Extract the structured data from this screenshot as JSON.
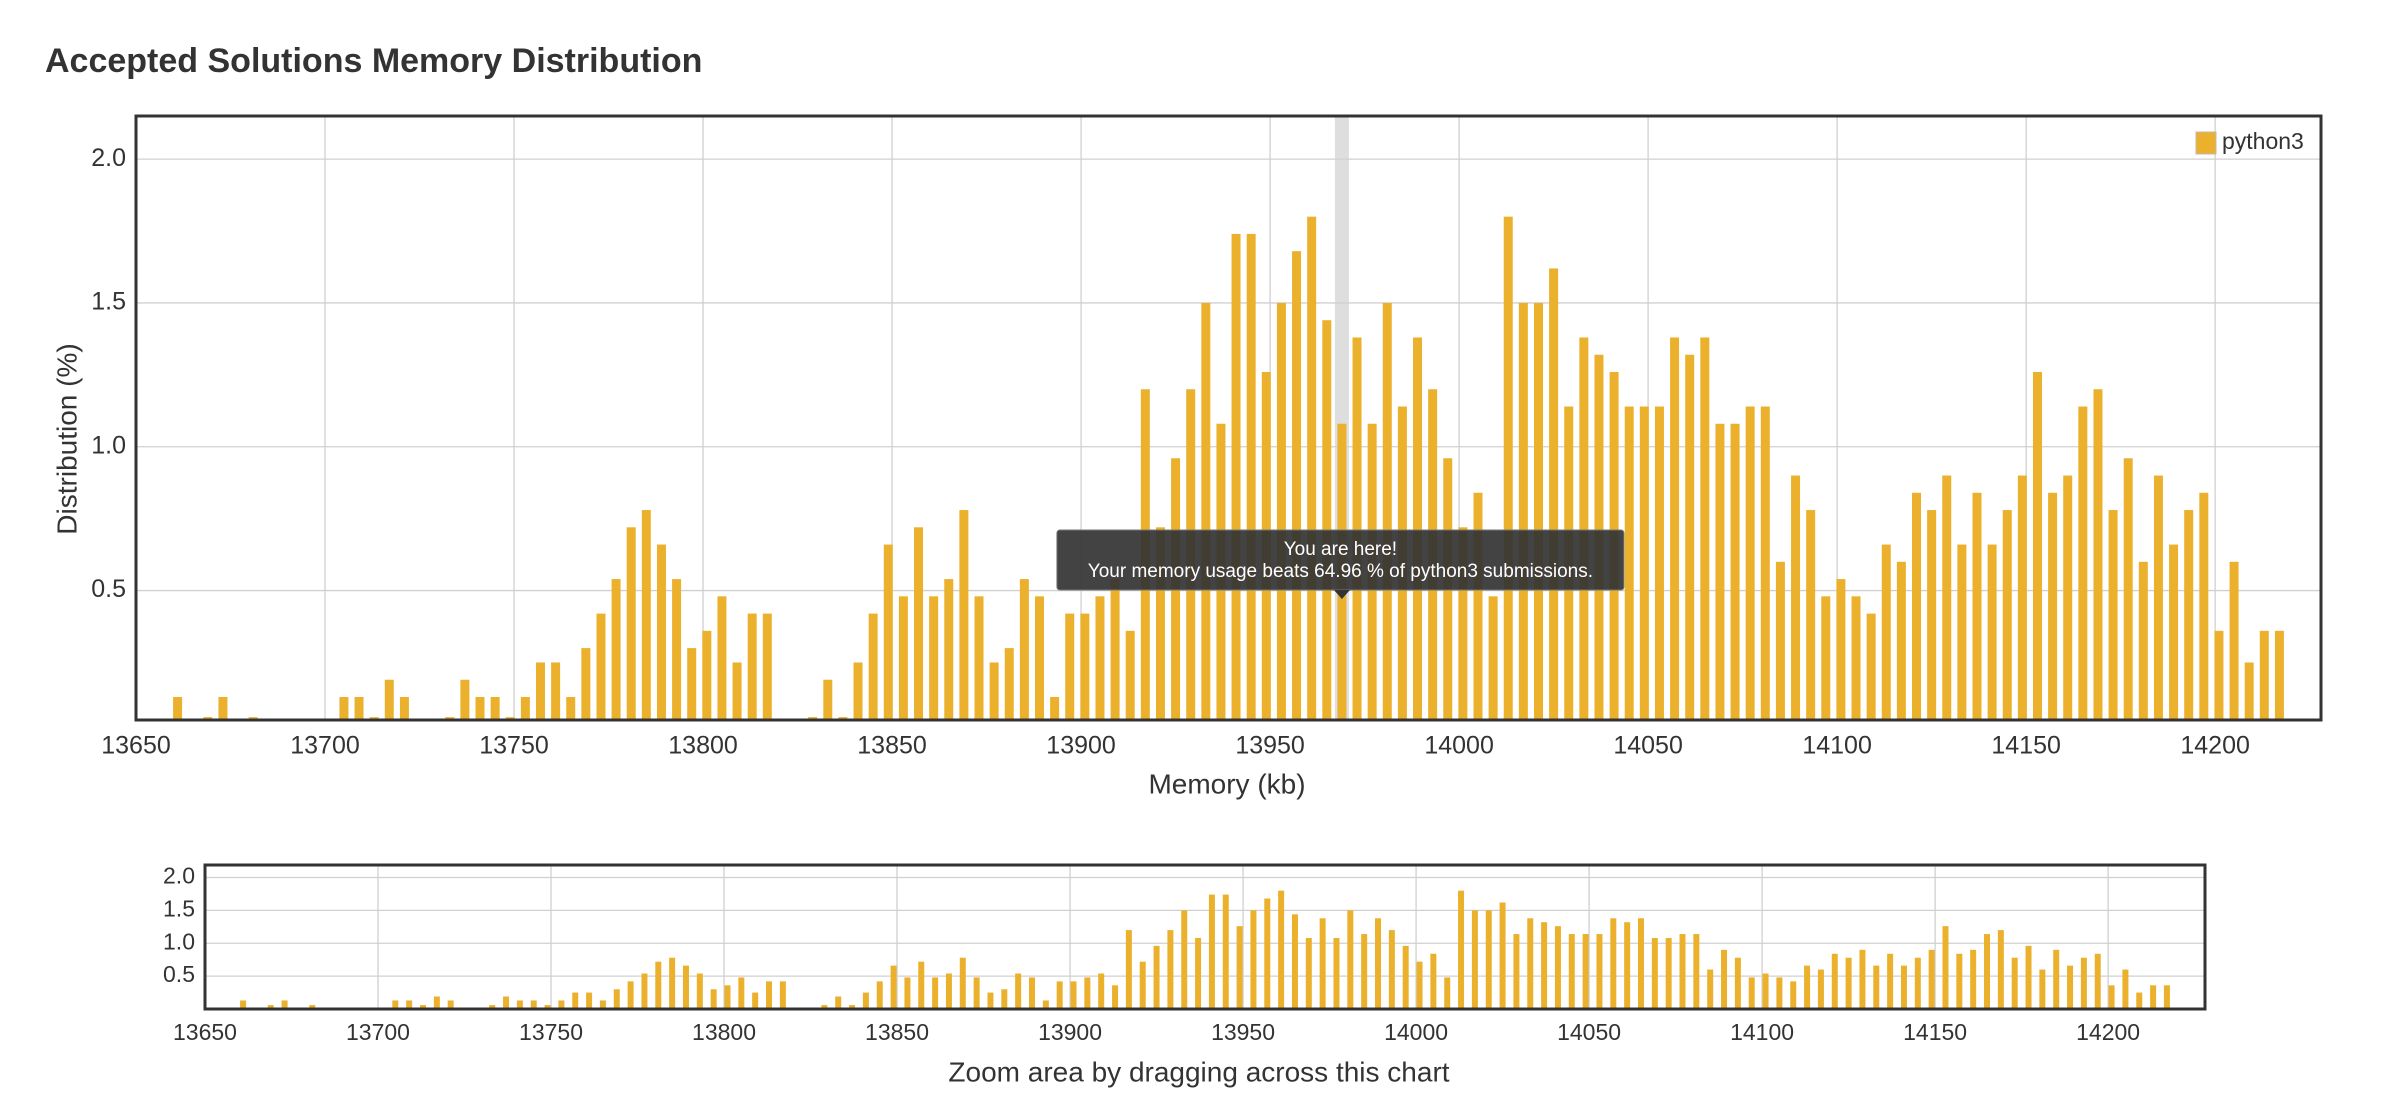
{
  "chart_data": {
    "type": "bar",
    "title": "Accepted Solutions Memory Distribution",
    "x_label": "Memory (kb)",
    "y_label": "Distribution (%)",
    "series": [
      {
        "name": "python3",
        "color": "#ebb12d",
        "x": [
          13661,
          13669,
          13673,
          13681,
          13705,
          13709,
          13713,
          13717,
          13721,
          13733,
          13737,
          13741,
          13745,
          13749,
          13753,
          13757,
          13761,
          13765,
          13769,
          13773,
          13777,
          13781,
          13785,
          13789,
          13793,
          13797,
          13801,
          13805,
          13809,
          13813,
          13817,
          13829,
          13833,
          13837,
          13841,
          13845,
          13849,
          13853,
          13857,
          13861,
          13865,
          13869,
          13873,
          13877,
          13881,
          13885,
          13889,
          13893,
          13897,
          13901,
          13905,
          13909,
          13913,
          13917,
          13921,
          13925,
          13929,
          13933,
          13937,
          13941,
          13945,
          13949,
          13953,
          13957,
          13961,
          13965,
          13969,
          13973,
          13977,
          13981,
          13985,
          13989,
          13993,
          13997,
          14001,
          14005,
          14009,
          14013,
          14017,
          14021,
          14025,
          14029,
          14033,
          14037,
          14041,
          14045,
          14049,
          14053,
          14057,
          14061,
          14065,
          14069,
          14073,
          14077,
          14081,
          14085,
          14089,
          14093,
          14097,
          14101,
          14105,
          14109,
          14113,
          14117,
          14121,
          14125,
          14129,
          14133,
          14137,
          14141,
          14145,
          14149,
          14153,
          14157,
          14161,
          14165,
          14169,
          14173,
          14177,
          14181,
          14185,
          14189,
          14193,
          14197,
          14201,
          14205,
          14209,
          14213,
          14217
        ],
        "values": [
          0.13,
          0.06,
          0.13,
          0.06,
          0.13,
          0.13,
          0.06,
          0.19,
          0.13,
          0.06,
          0.19,
          0.13,
          0.13,
          0.06,
          0.13,
          0.25,
          0.25,
          0.13,
          0.3,
          0.42,
          0.54,
          0.72,
          0.78,
          0.66,
          0.54,
          0.3,
          0.36,
          0.48,
          0.25,
          0.42,
          0.42,
          0.06,
          0.19,
          0.06,
          0.25,
          0.42,
          0.66,
          0.48,
          0.72,
          0.48,
          0.54,
          0.78,
          0.48,
          0.25,
          0.3,
          0.54,
          0.48,
          0.13,
          0.42,
          0.42,
          0.48,
          0.54,
          0.36,
          1.2,
          0.72,
          0.96,
          1.2,
          1.5,
          1.08,
          1.74,
          1.74,
          1.26,
          1.5,
          1.68,
          1.8,
          1.44,
          1.08,
          1.38,
          1.08,
          1.5,
          1.14,
          1.38,
          1.2,
          0.96,
          0.72,
          0.84,
          0.48,
          1.8,
          1.5,
          1.5,
          1.62,
          1.14,
          1.38,
          1.32,
          1.26,
          1.14,
          1.14,
          1.14,
          1.38,
          1.32,
          1.38,
          1.08,
          1.08,
          1.14,
          1.14,
          0.6,
          0.9,
          0.78,
          0.48,
          0.54,
          0.48,
          0.42,
          0.66,
          0.6,
          0.84,
          0.78,
          0.9,
          0.66,
          0.84,
          0.66,
          0.78,
          0.9,
          1.26,
          0.84,
          0.9,
          1.14,
          1.2,
          0.78,
          0.96,
          0.6,
          0.9,
          0.66,
          0.78,
          0.84,
          0.36,
          0.6,
          0.25,
          0.36,
          0.36
        ]
      }
    ],
    "xlim": [
      13650,
      14228
    ],
    "xticks": [
      13650,
      13700,
      13750,
      13800,
      13850,
      13900,
      13950,
      14000,
      14050,
      14100,
      14150,
      14200
    ],
    "ylim": [
      0.05,
      2.15
    ],
    "yticks": [
      {
        "value": 0.5,
        "label": "0.5"
      },
      {
        "value": 1,
        "label": "1.0"
      },
      {
        "value": 1.5,
        "label": "1.5"
      },
      {
        "value": 2,
        "label": "2.0"
      }
    ],
    "grid": true,
    "legend": "top-right",
    "highlight_x": 13969,
    "tooltip": {
      "title": "You are here!",
      "text": "Your memory usage beats 64.96 % of python3 submissions."
    },
    "navigator": {
      "caption": "Zoom area by dragging across this chart",
      "ylim": [
        0,
        2.19
      ]
    }
  }
}
